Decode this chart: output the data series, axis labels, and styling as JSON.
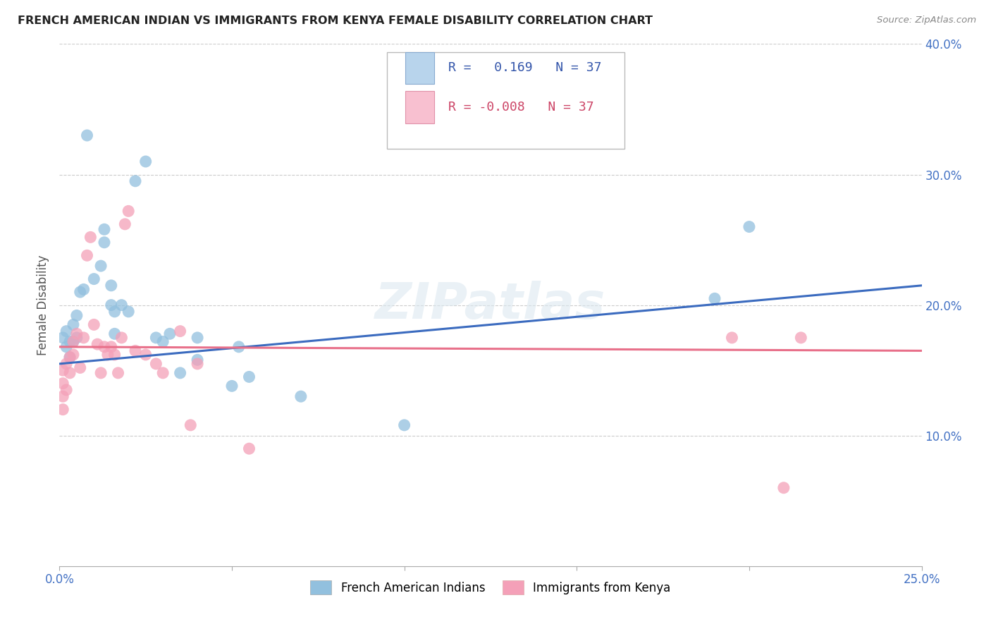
{
  "title": "FRENCH AMERICAN INDIAN VS IMMIGRANTS FROM KENYA FEMALE DISABILITY CORRELATION CHART",
  "source": "Source: ZipAtlas.com",
  "ylabel": "Female Disability",
  "xlim": [
    0.0,
    0.25
  ],
  "ylim": [
    0.0,
    0.4
  ],
  "xtick_positions": [
    0.0,
    0.05,
    0.1,
    0.15,
    0.2,
    0.25
  ],
  "xtick_labels": [
    "0.0%",
    "",
    "",
    "",
    "",
    "25.0%"
  ],
  "ytick_positions": [
    0.0,
    0.1,
    0.2,
    0.3,
    0.4
  ],
  "ytick_labels": [
    "",
    "10.0%",
    "20.0%",
    "30.0%",
    "40.0%"
  ],
  "watermark": "ZIPatlas",
  "series1_label": "French American Indians",
  "series2_label": "Immigrants from Kenya",
  "series1_color": "#92c0de",
  "series2_color": "#f4a0b8",
  "series1_line_color": "#3b6bbf",
  "series2_line_color": "#e8708a",
  "series1_R": 0.169,
  "series2_R": -0.008,
  "series1_N": 37,
  "series2_N": 37,
  "blue_dots": [
    [
      0.001,
      0.175
    ],
    [
      0.002,
      0.168
    ],
    [
      0.002,
      0.18
    ],
    [
      0.003,
      0.172
    ],
    [
      0.003,
      0.16
    ],
    [
      0.004,
      0.185
    ],
    [
      0.004,
      0.172
    ],
    [
      0.005,
      0.192
    ],
    [
      0.005,
      0.175
    ],
    [
      0.006,
      0.21
    ],
    [
      0.007,
      0.212
    ],
    [
      0.008,
      0.33
    ],
    [
      0.01,
      0.22
    ],
    [
      0.012,
      0.23
    ],
    [
      0.013,
      0.248
    ],
    [
      0.013,
      0.258
    ],
    [
      0.015,
      0.2
    ],
    [
      0.015,
      0.215
    ],
    [
      0.016,
      0.195
    ],
    [
      0.016,
      0.178
    ],
    [
      0.018,
      0.2
    ],
    [
      0.02,
      0.195
    ],
    [
      0.022,
      0.295
    ],
    [
      0.025,
      0.31
    ],
    [
      0.028,
      0.175
    ],
    [
      0.03,
      0.172
    ],
    [
      0.032,
      0.178
    ],
    [
      0.035,
      0.148
    ],
    [
      0.04,
      0.158
    ],
    [
      0.04,
      0.175
    ],
    [
      0.05,
      0.138
    ],
    [
      0.052,
      0.168
    ],
    [
      0.055,
      0.145
    ],
    [
      0.07,
      0.13
    ],
    [
      0.1,
      0.108
    ],
    [
      0.19,
      0.205
    ],
    [
      0.2,
      0.26
    ]
  ],
  "pink_dots": [
    [
      0.001,
      0.12
    ],
    [
      0.001,
      0.13
    ],
    [
      0.001,
      0.14
    ],
    [
      0.001,
      0.15
    ],
    [
      0.002,
      0.135
    ],
    [
      0.002,
      0.155
    ],
    [
      0.003,
      0.148
    ],
    [
      0.003,
      0.16
    ],
    [
      0.004,
      0.162
    ],
    [
      0.004,
      0.172
    ],
    [
      0.005,
      0.178
    ],
    [
      0.006,
      0.152
    ],
    [
      0.007,
      0.175
    ],
    [
      0.008,
      0.238
    ],
    [
      0.009,
      0.252
    ],
    [
      0.01,
      0.185
    ],
    [
      0.011,
      0.17
    ],
    [
      0.012,
      0.148
    ],
    [
      0.013,
      0.168
    ],
    [
      0.014,
      0.162
    ],
    [
      0.015,
      0.168
    ],
    [
      0.016,
      0.162
    ],
    [
      0.017,
      0.148
    ],
    [
      0.018,
      0.175
    ],
    [
      0.019,
      0.262
    ],
    [
      0.02,
      0.272
    ],
    [
      0.022,
      0.165
    ],
    [
      0.025,
      0.162
    ],
    [
      0.028,
      0.155
    ],
    [
      0.03,
      0.148
    ],
    [
      0.035,
      0.18
    ],
    [
      0.038,
      0.108
    ],
    [
      0.04,
      0.155
    ],
    [
      0.055,
      0.09
    ],
    [
      0.195,
      0.175
    ],
    [
      0.21,
      0.06
    ],
    [
      0.215,
      0.175
    ]
  ],
  "blue_line": {
    "x0": 0.0,
    "y0": 0.155,
    "x1": 0.25,
    "y1": 0.215
  },
  "pink_line": {
    "x0": 0.0,
    "y0": 0.168,
    "x1": 0.25,
    "y1": 0.165
  }
}
